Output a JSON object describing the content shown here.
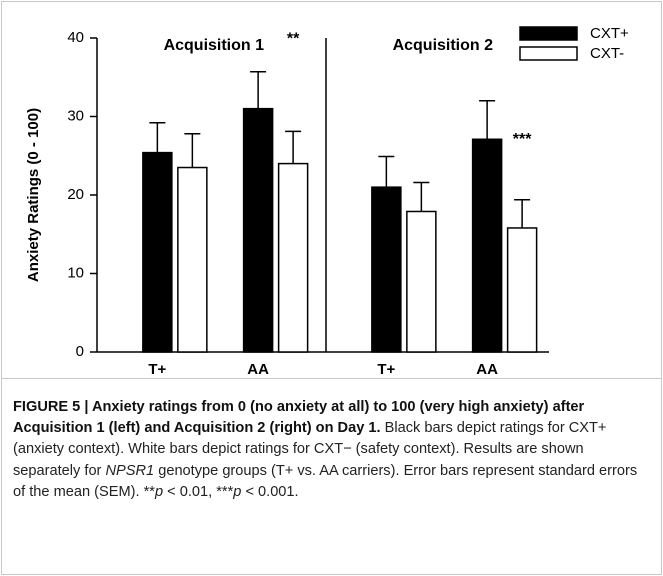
{
  "chart_data": {
    "type": "bar",
    "ylabel": "Anxiety Ratings (0 - 100)",
    "groups": [
      "Acquisition 1",
      "Acquisition 2"
    ],
    "categories": [
      "T+",
      "AA",
      "T+",
      "AA"
    ],
    "series": [
      {
        "name": "CXT+",
        "color": "#000000",
        "values": [
          25.4,
          31,
          21,
          27.1
        ],
        "errors": [
          3.8,
          4.7,
          3.9,
          4.9
        ]
      },
      {
        "name": "CXT-",
        "color": "#ffffff",
        "values": [
          23.5,
          24,
          17.9,
          15.8
        ],
        "errors": [
          4.3,
          4.1,
          3.7,
          3.6
        ]
      }
    ],
    "annotations": [
      null,
      "**",
      null,
      "***"
    ],
    "ylim": [
      0,
      40
    ],
    "yticks": [
      0,
      10,
      20,
      30,
      40
    ],
    "legend": "upper right"
  },
  "caption": {
    "title": "FIGURE 5 | Anxiety ratings from 0 (no anxiety at all) to 100 (very high anxiety) after Acquisition 1 (left) and Acquisition 2 (right) on Day 1.",
    "body": [
      {
        "text": "Black bars depict ratings for CXT+ (anxiety context). White bars depict ratings for CXT− (safety context). Results are shown separately for ",
        "italic": false
      },
      {
        "text": "NPSR1",
        "italic": true
      },
      {
        "text": " genotype groups (T+ vs. AA carriers). Error bars represent standard errors of the mean (SEM). **",
        "italic": false
      },
      {
        "text": "p",
        "italic": true
      },
      {
        "text": " < 0.01, ***",
        "italic": false
      },
      {
        "text": "p",
        "italic": true
      },
      {
        "text": " < 0.001.",
        "italic": false
      }
    ]
  }
}
